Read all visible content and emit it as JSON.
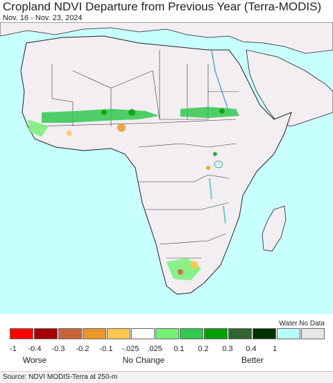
{
  "title": "Cropland NDVI Departure from Previous Year (Terra-MODIS)",
  "date_range": "Nov. 16 - Nov. 23, 2024",
  "legend": {
    "water_label": "Water No Data",
    "ticks": [
      "-1",
      "-0.4",
      "-0.3",
      "-0.2",
      "-0.1",
      "-.025",
      ".025",
      "0.1",
      "0.2",
      "0.3",
      "0.4",
      "1"
    ],
    "categories": {
      "worse": "Worse",
      "no_change": "No Change",
      "better": "Better"
    },
    "colors": [
      "#ff0000",
      "#a50000",
      "#c8643c",
      "#eb9628",
      "#fac850",
      "#ffffff",
      "#78f078",
      "#32c850",
      "#00a000",
      "#326432",
      "#003200",
      "#b4ffff",
      "#e6e6e6"
    ]
  },
  "map": {
    "ocean_color": "#c8ffff",
    "land_color": "#f2eef2",
    "border_color": "#222222"
  },
  "source": "Source: NDVI MODIS-Terra at 250-m"
}
